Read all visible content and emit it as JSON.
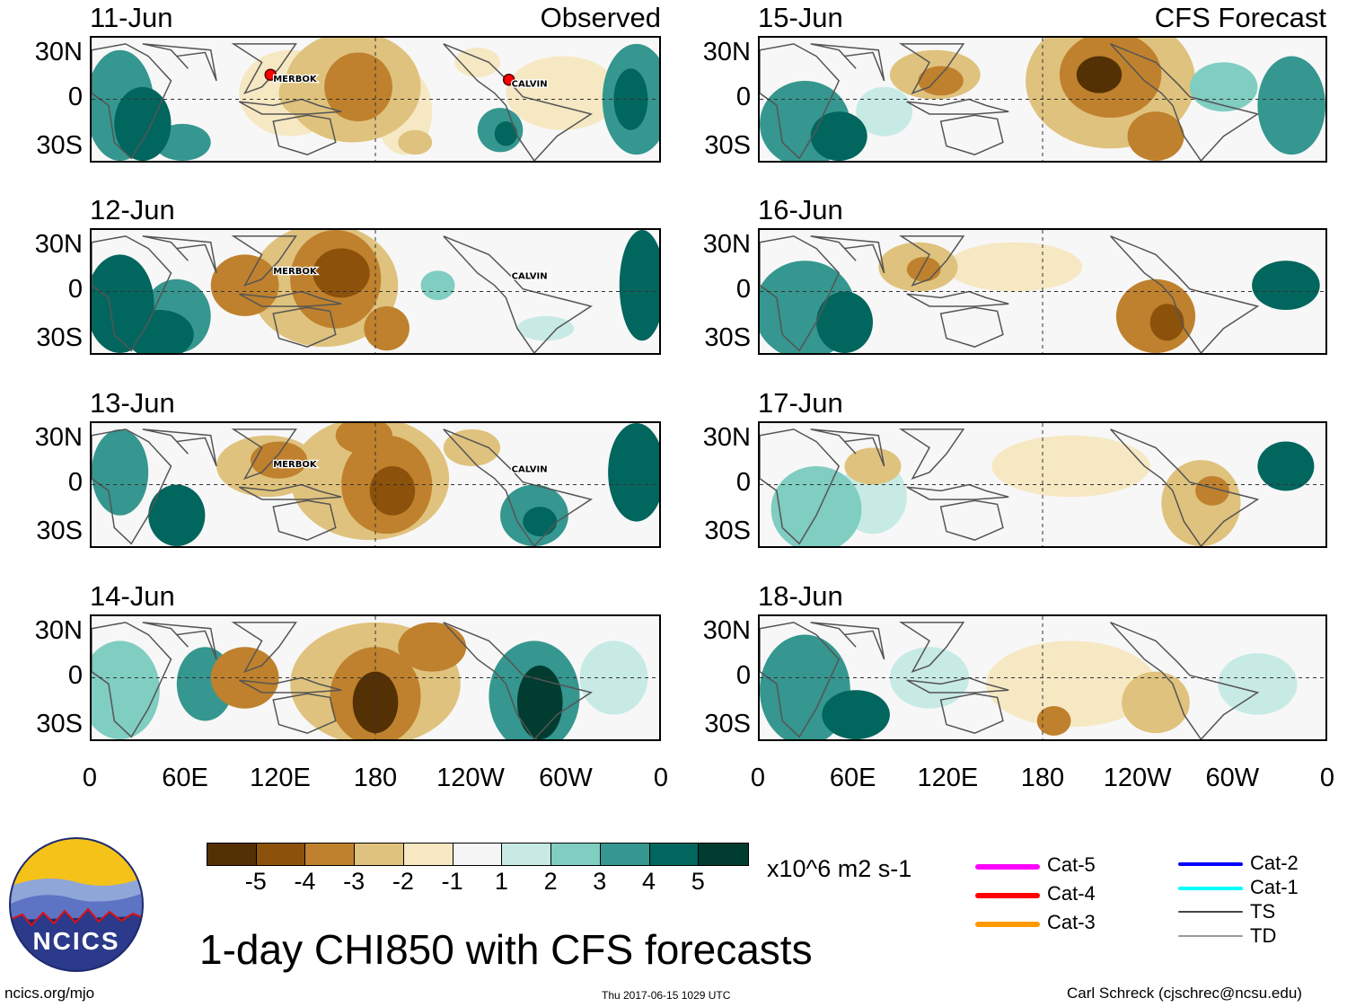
{
  "figure": {
    "title": "1-day CHI850 with CFS forecasts",
    "website": "ncics.org/mjo",
    "timestamp": "Thu 2017-06-15 1029 UTC",
    "credit": "Carl Schreck (cjschrec@ncsu.edu)",
    "logo_text": "NCICS"
  },
  "columns": {
    "left_tag": "Observed",
    "right_tag": "CFS Forecast"
  },
  "lat_labels": [
    "30N",
    "0",
    "30S"
  ],
  "lon_labels": [
    "0",
    "60E",
    "120E",
    "180",
    "120W",
    "60W",
    "0"
  ],
  "panels": {
    "left": [
      {
        "date": "11-Jun",
        "storms": [
          "MERBOK",
          "CALVIN"
        ]
      },
      {
        "date": "12-Jun",
        "storms": [
          "MERBOK",
          "CALVIN"
        ]
      },
      {
        "date": "13-Jun",
        "storms": [
          "MERBOK",
          "CALVIN"
        ]
      },
      {
        "date": "14-Jun",
        "storms": []
      }
    ],
    "right": [
      {
        "date": "15-Jun",
        "storms": []
      },
      {
        "date": "16-Jun",
        "storms": []
      },
      {
        "date": "17-Jun",
        "storms": []
      },
      {
        "date": "18-Jun",
        "storms": []
      }
    ]
  },
  "colorbar": {
    "colors": [
      "#543005",
      "#8c510a",
      "#bf812d",
      "#dfc27d",
      "#f6e8c3",
      "#f5f5f5",
      "#c7eae5",
      "#80cdc1",
      "#35978f",
      "#01665e",
      "#003c30"
    ],
    "labels": [
      "-5",
      "-4",
      "-3",
      "-2",
      "-1",
      "1",
      "2",
      "3",
      "4",
      "5"
    ],
    "units": "x10^6 m2 s-1"
  },
  "legend": {
    "left": [
      {
        "label": "Cat-5",
        "color": "#ff00ff"
      },
      {
        "label": "Cat-4",
        "color": "#ff0000"
      },
      {
        "label": "Cat-3",
        "color": "#ff9900"
      }
    ],
    "right": [
      {
        "label": "Cat-2",
        "color": "#0000ff"
      },
      {
        "label": "Cat-1",
        "color": "#00ffff"
      },
      {
        "label": "TS",
        "color": "#444444"
      },
      {
        "label": "TD",
        "color": "#999999"
      }
    ]
  }
}
